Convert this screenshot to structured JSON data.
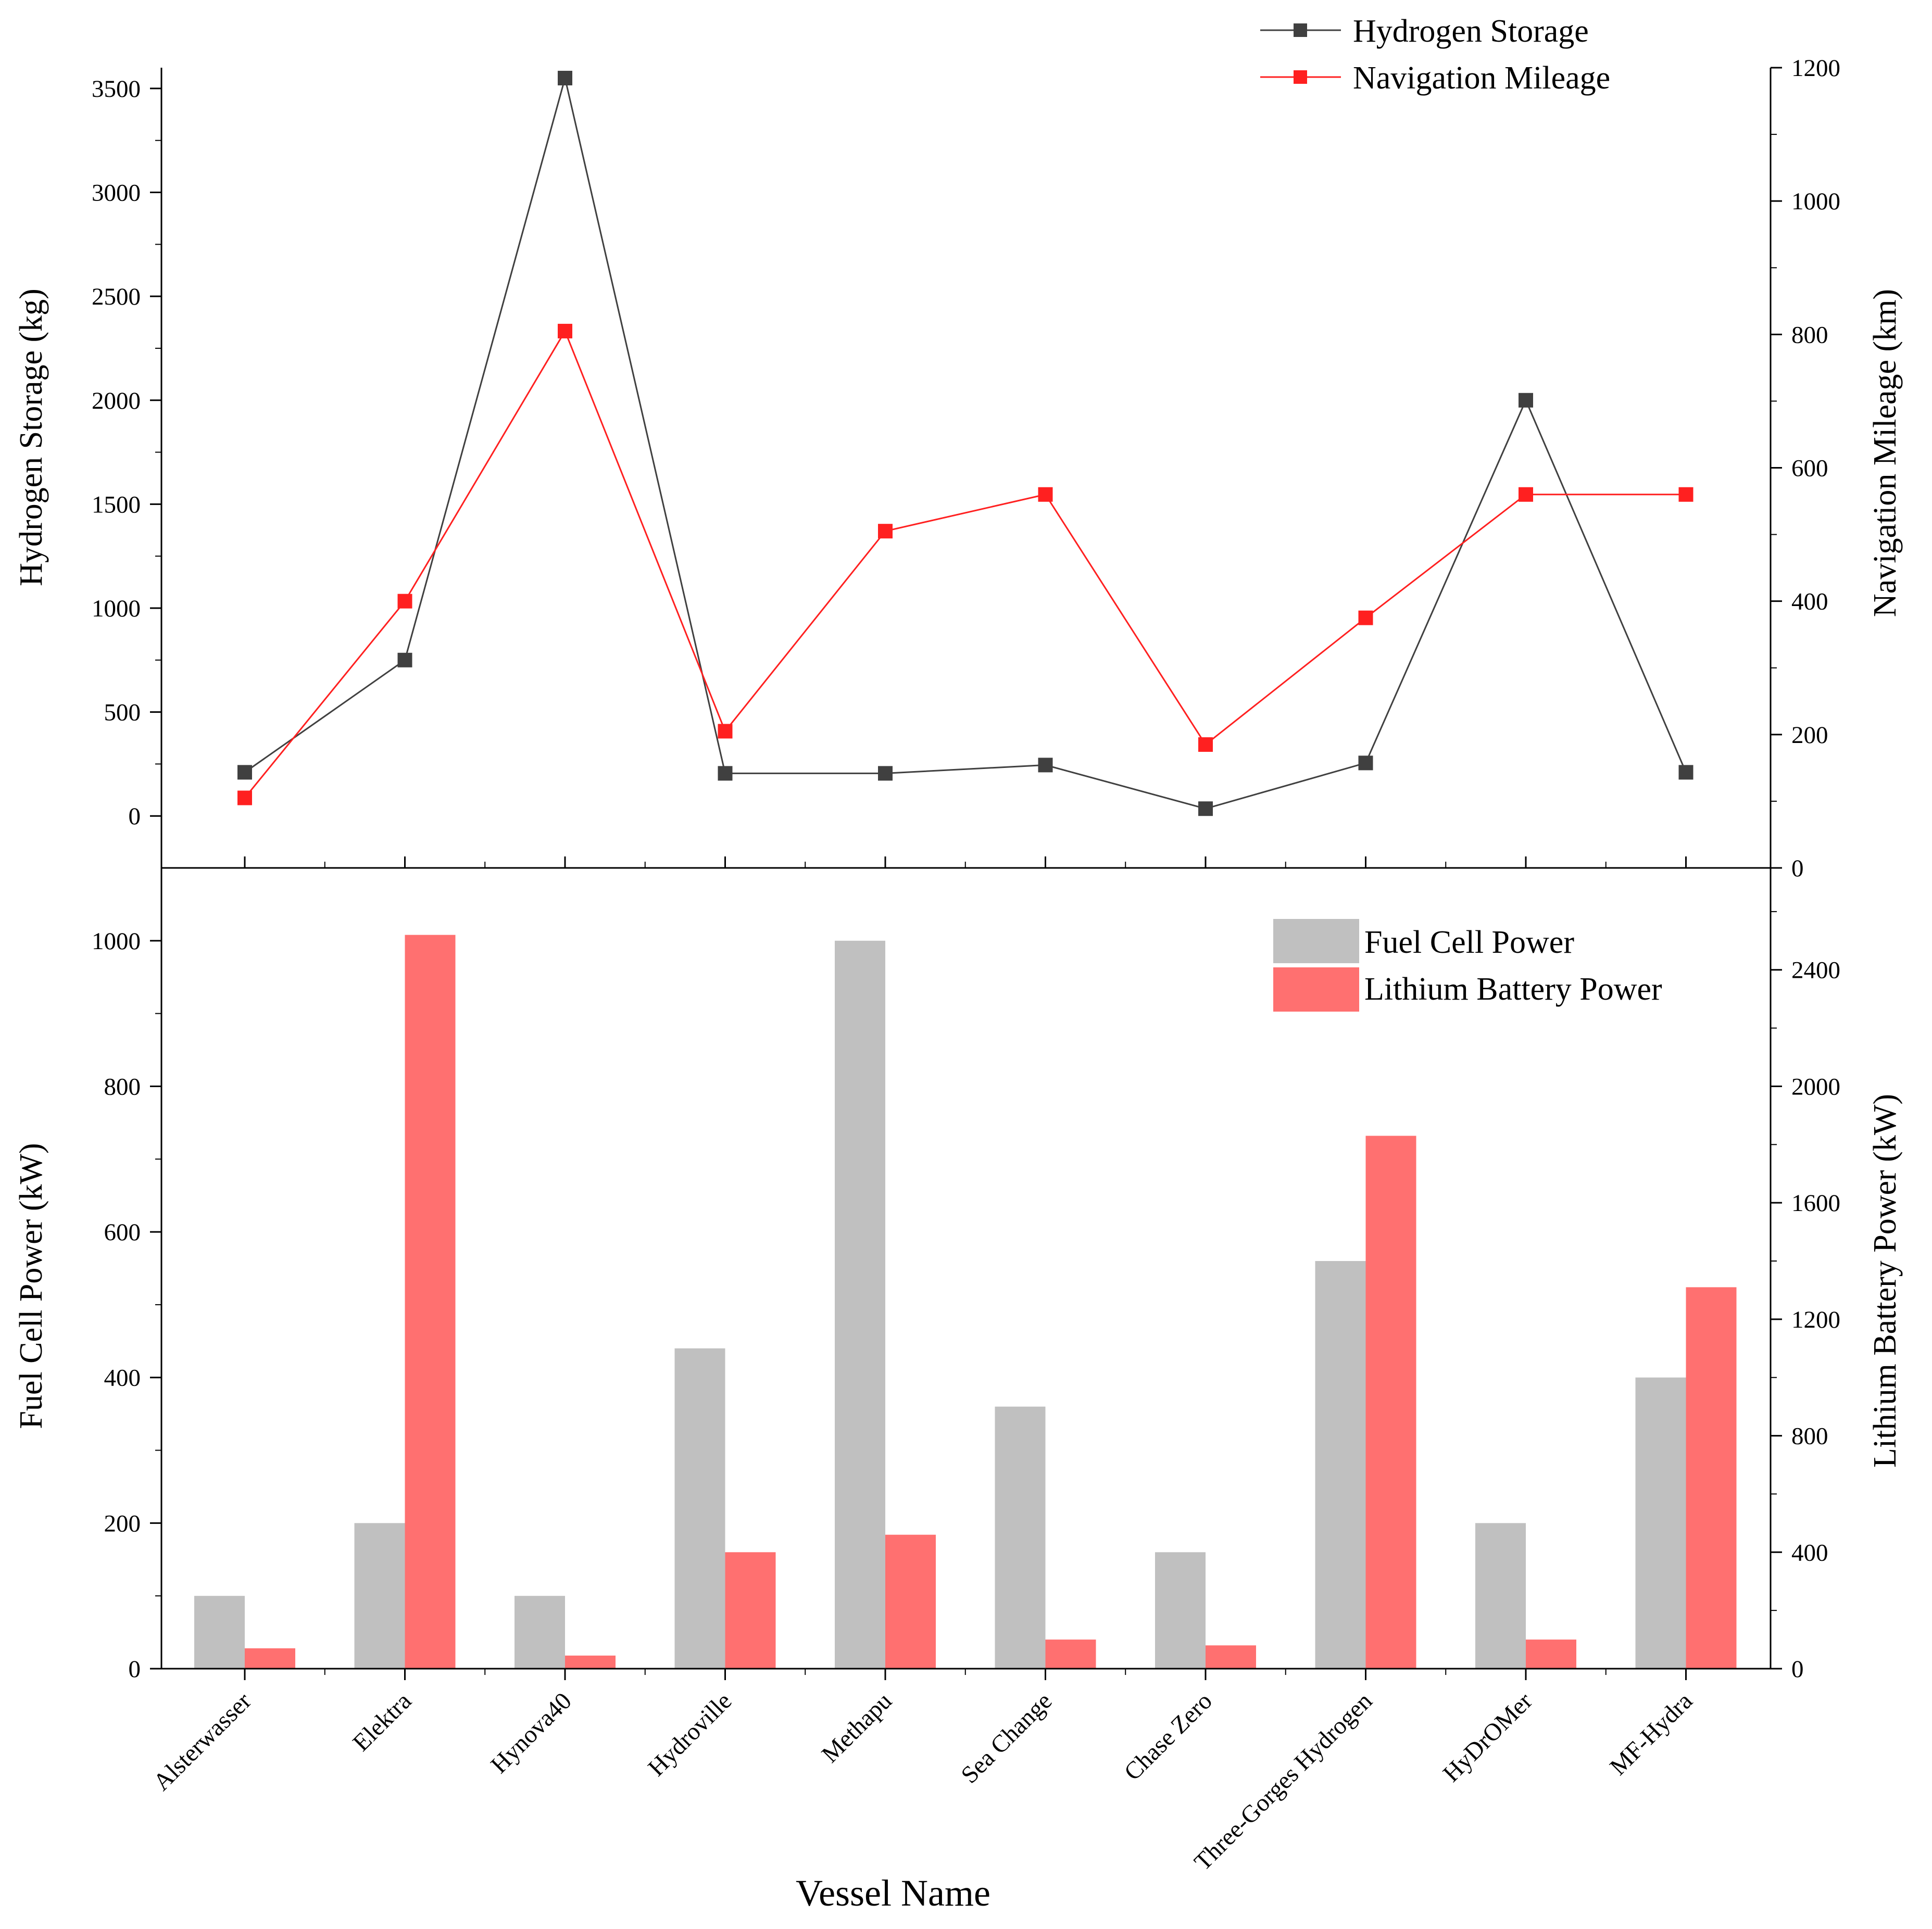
{
  "chart_data": [
    {
      "type": "line",
      "categories": [
        "Alsterwasser",
        "Elektra",
        "Hynova40",
        "Hydroville",
        "Methapu",
        "Sea Change",
        "Chase Zero",
        "Three-Gorges Hydrogen",
        "HyDrOMer",
        "MF-Hydra"
      ],
      "series": [
        {
          "name": "Hydrogen Storage",
          "axis": "left",
          "color": "#404040",
          "values": [
            210,
            750,
            3550,
            205,
            205,
            245,
            35,
            255,
            2000,
            210
          ]
        },
        {
          "name": "Navigation Mileage",
          "axis": "right",
          "color": "#ff2020",
          "values": [
            105,
            400,
            805,
            205,
            505,
            560,
            185,
            375,
            560,
            560
          ]
        }
      ],
      "ylabel": "Hydrogen Storage (kg)",
      "ylim": [
        -250,
        3600
      ],
      "yticks": [
        0,
        500,
        1000,
        1500,
        2000,
        2500,
        3000,
        3500
      ],
      "ylabel_right": "Navigation Mileage (km)",
      "ylim_right": [
        0,
        1200
      ],
      "yticks_right": [
        0,
        200,
        400,
        600,
        800,
        1000,
        1200
      ],
      "legend": "top-right"
    },
    {
      "type": "bar",
      "categories": [
        "Alsterwasser",
        "Elektra",
        "Hynova40",
        "Hydroville",
        "Methapu",
        "Sea Change",
        "Chase Zero",
        "Three-Gorges Hydrogen",
        "HyDrOMer",
        "MF-Hydra"
      ],
      "series": [
        {
          "name": "Fuel Cell Power",
          "axis": "left",
          "color": "#c0c0c0",
          "values": [
            100,
            200,
            100,
            440,
            1000,
            360,
            160,
            560,
            200,
            400
          ]
        },
        {
          "name": "Lithium Battery Power",
          "axis": "right",
          "color": "#ff7070",
          "values": [
            70,
            2520,
            45,
            400,
            460,
            100,
            80,
            1830,
            100,
            1310
          ]
        }
      ],
      "ylabel": "Fuel Cell Power (kW)",
      "ylim": [
        0,
        1100
      ],
      "yticks": [
        0,
        200,
        400,
        600,
        800,
        1000
      ],
      "ylabel_right": "Lithium Battery Power (kW)",
      "ylim_right": [
        0,
        2750
      ],
      "yticks_right": [
        0,
        400,
        800,
        1200,
        1600,
        2000,
        2400
      ],
      "xlabel": "Vessel Name",
      "legend": "top-right"
    }
  ]
}
